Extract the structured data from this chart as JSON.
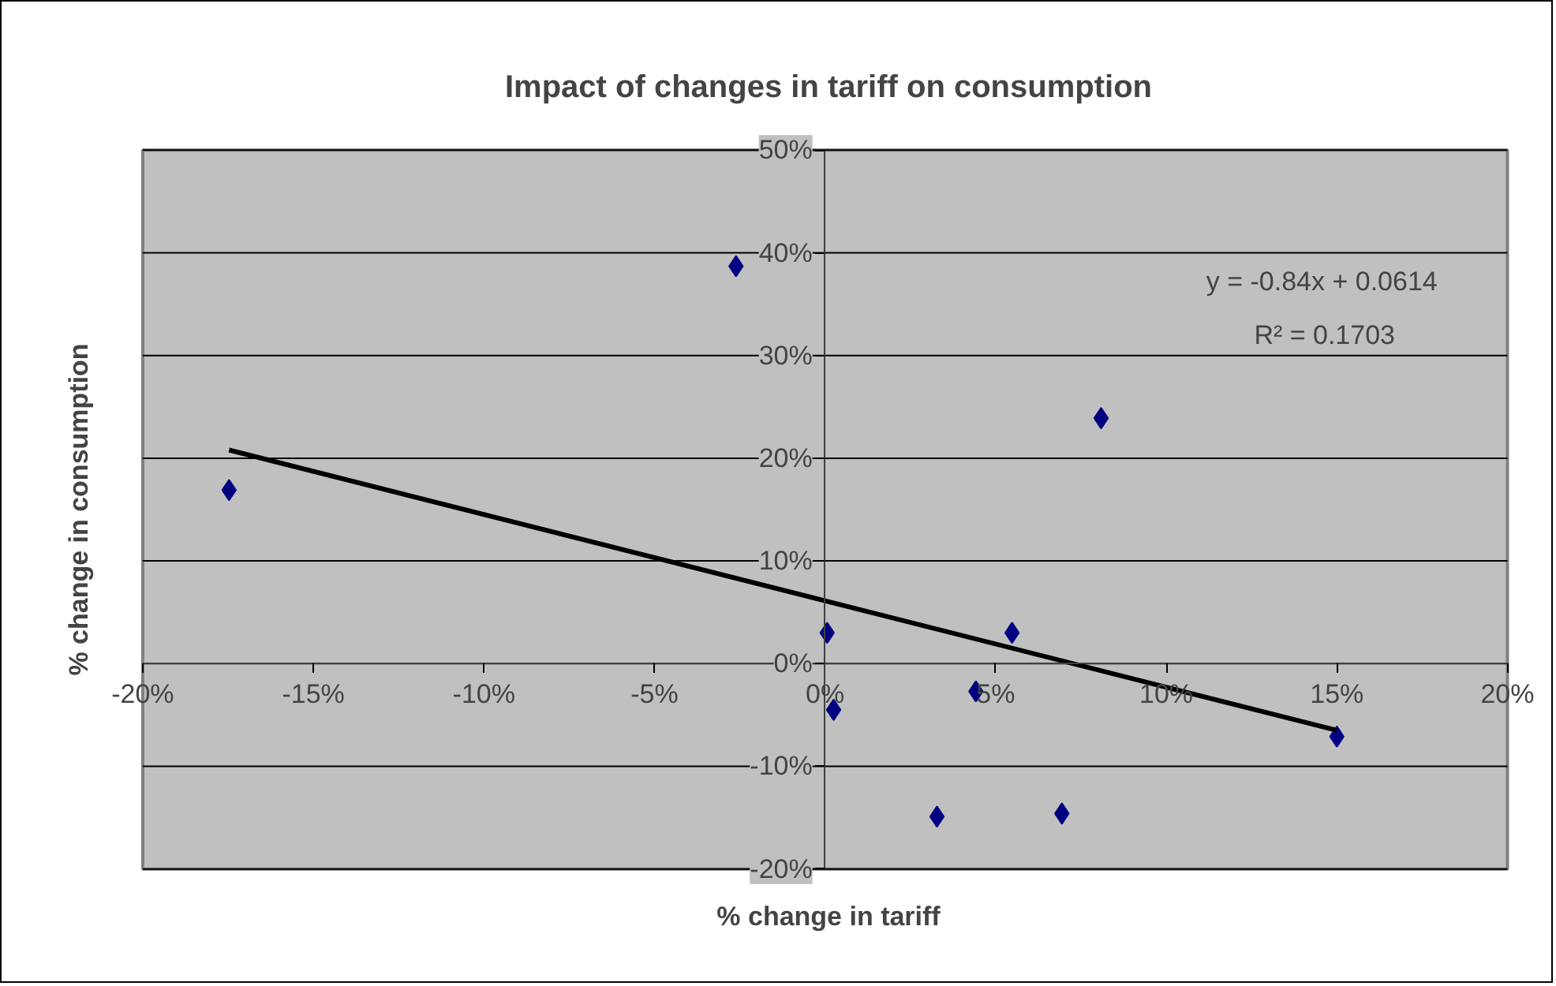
{
  "chart_data": {
    "type": "scatter",
    "title": "Impact of changes in tariff on consumption",
    "xlabel": "% change in tariff",
    "ylabel": "% change in consumption",
    "annotations": [
      "y = -0.84x + 0.0614",
      "R² = 0.1703"
    ],
    "xlim": [
      -20,
      20
    ],
    "xticks": [
      {
        "value": -20,
        "label": "-20%"
      },
      {
        "value": -15,
        "label": "-15%"
      },
      {
        "value": -10,
        "label": "-10%"
      },
      {
        "value": -5,
        "label": "-5%"
      },
      {
        "value": 0,
        "label": "0%"
      },
      {
        "value": 5,
        "label": "5%"
      },
      {
        "value": 10,
        "label": "10%"
      },
      {
        "value": 15,
        "label": "15%"
      },
      {
        "value": 20,
        "label": "20%"
      }
    ],
    "ylim": [
      -20,
      50
    ],
    "yticks": [
      {
        "value": -20,
        "label": "-20%"
      },
      {
        "value": -10,
        "label": "-10%"
      },
      {
        "value": 0,
        "label": "0%"
      },
      {
        "value": 10,
        "label": "10%"
      },
      {
        "value": 20,
        "label": "20%"
      },
      {
        "value": 30,
        "label": "30%"
      },
      {
        "value": 40,
        "label": "40%"
      },
      {
        "value": 50,
        "label": "50%"
      }
    ],
    "grid": "y",
    "series": [
      {
        "marker": "diamond",
        "color": "#000080",
        "x": [
          -17.47,
          -2.61,
          0.06,
          0.25,
          3.28,
          4.42,
          5.48,
          6.94,
          8.09,
          15.0
        ],
        "values": [
          16.9,
          38.7,
          3.0,
          -4.5,
          -14.9,
          -2.7,
          3.0,
          -14.6,
          23.9,
          -7.1
        ]
      },
      {
        "type": "line",
        "color": "#000000",
        "x": [
          -17.47,
          15.0
        ],
        "values": [
          20.8,
          -6.5
        ]
      }
    ]
  }
}
